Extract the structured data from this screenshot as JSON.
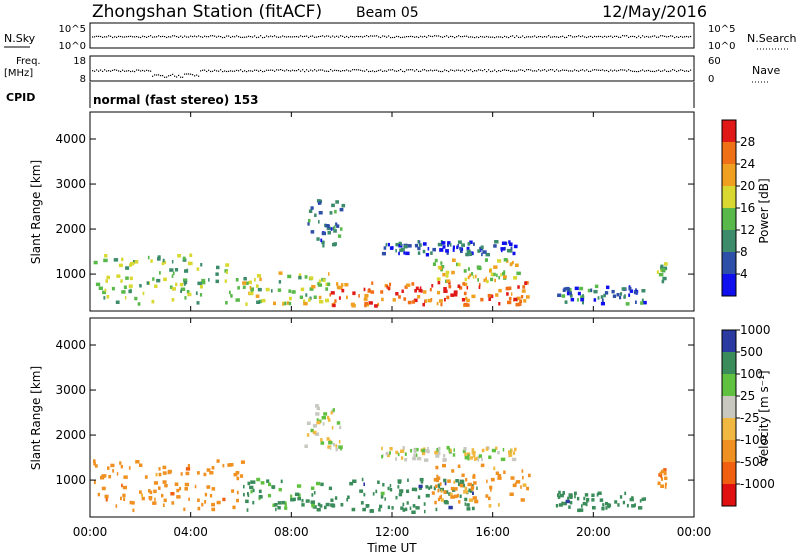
{
  "header": {
    "station": "Zhongshan Station (fitACF)",
    "beam": "Beam 05",
    "date": "12/May/2016"
  },
  "strips": {
    "nsky_label": "N.Sky",
    "nsearch_label": "N.Search",
    "freq_label": "Freq.",
    "freq_unit": "[MHz]",
    "nave_label": "Nave",
    "cpid_label": "CPID",
    "cpid_text": "normal (fast stereo) 153",
    "left_ticks_noise": [
      "10^5",
      "10^0"
    ],
    "right_ticks_noise": [
      "10^5",
      "10^0"
    ],
    "left_ticks_freq": [
      "18",
      "8"
    ],
    "right_ticks_freq": [
      "60",
      "0"
    ]
  },
  "panels": {
    "ylabel": "Slant Range [km]",
    "xlabel": "Time UT",
    "xticks": [
      "00:00",
      "04:00",
      "08:00",
      "12:00",
      "16:00",
      "20:00",
      "00:00"
    ],
    "yticks": [
      "1000",
      "2000",
      "3000",
      "4000"
    ],
    "power_label": "Power [dB]",
    "power_ticks": [
      "4",
      "8",
      "12",
      "16",
      "20",
      "24",
      "28"
    ],
    "velocity_label": "Velocity [m s⁻¹]",
    "velocity_ticks": [
      "-1000",
      "-500",
      "-100",
      "-25",
      "25",
      "100",
      "500",
      "1000"
    ]
  },
  "colors": {
    "power": [
      "#1010ee",
      "#2e4fa8",
      "#3c8c6c",
      "#58b84a",
      "#d8d830",
      "#f0a020",
      "#f07018",
      "#e01818"
    ],
    "velocity": [
      "#e01010",
      "#f06010",
      "#f09020",
      "#f0b840",
      "#c8c8c0",
      "#60c040",
      "#3a8c5a",
      "#2a3aa0"
    ]
  },
  "chart_data": [
    {
      "type": "heatmap",
      "title": "Power",
      "xlabel": "Time UT",
      "ylabel": "Slant Range [km]",
      "xlim": [
        0,
        24
      ],
      "ylim": [
        180,
        4600
      ],
      "colorbar": "Power [dB]",
      "colorbar_range": [
        0,
        32
      ],
      "echo_regions": [
        {
          "t_start": 0.0,
          "t_end": 5.5,
          "r_low": 300,
          "r_high": 1400,
          "power_db": 14
        },
        {
          "t_start": 5.5,
          "t_end": 9.5,
          "r_low": 300,
          "r_high": 1000,
          "power_db": 16
        },
        {
          "t_start": 9.5,
          "t_end": 17.5,
          "r_low": 250,
          "r_high": 800,
          "power_db": 26
        },
        {
          "t_start": 13.5,
          "t_end": 17.0,
          "r_low": 800,
          "r_high": 1300,
          "power_db": 18
        },
        {
          "t_start": 8.5,
          "t_end": 10.0,
          "r_low": 1600,
          "r_high": 2700,
          "power_db": 8
        },
        {
          "t_start": 11.5,
          "t_end": 17.0,
          "r_low": 1400,
          "r_high": 1700,
          "power_db": 6
        },
        {
          "t_start": 18.5,
          "t_end": 22.0,
          "r_low": 300,
          "r_high": 700,
          "power_db": 8
        },
        {
          "t_start": 22.5,
          "t_end": 22.9,
          "r_low": 800,
          "r_high": 1200,
          "power_db": 14
        }
      ]
    },
    {
      "type": "heatmap",
      "title": "Velocity",
      "xlabel": "Time UT",
      "ylabel": "Slant Range [km]",
      "xlim": [
        0,
        24
      ],
      "ylim": [
        180,
        4600
      ],
      "colorbar": "Velocity [m s⁻¹]",
      "colorbar_range": [
        -1000,
        1000
      ],
      "echo_regions": [
        {
          "t_start": 0.0,
          "t_end": 6.0,
          "r_low": 300,
          "r_high": 1400,
          "velocity": -300
        },
        {
          "t_start": 6.0,
          "t_end": 9.0,
          "r_low": 300,
          "r_high": 1000,
          "velocity": 150
        },
        {
          "t_start": 9.0,
          "t_end": 15.5,
          "r_low": 250,
          "r_high": 1000,
          "velocity": 300
        },
        {
          "t_start": 13.5,
          "t_end": 17.5,
          "r_low": 400,
          "r_high": 1300,
          "velocity": -200
        },
        {
          "t_start": 8.5,
          "t_end": 10.0,
          "r_low": 1600,
          "r_high": 2700,
          "velocity": 10
        },
        {
          "t_start": 11.5,
          "t_end": 17.0,
          "r_low": 1400,
          "r_high": 1700,
          "velocity": 5
        },
        {
          "t_start": 18.5,
          "t_end": 22.0,
          "r_low": 300,
          "r_high": 700,
          "velocity": 300
        },
        {
          "t_start": 22.5,
          "t_end": 22.9,
          "r_low": 800,
          "r_high": 1200,
          "velocity": -400
        }
      ]
    }
  ]
}
